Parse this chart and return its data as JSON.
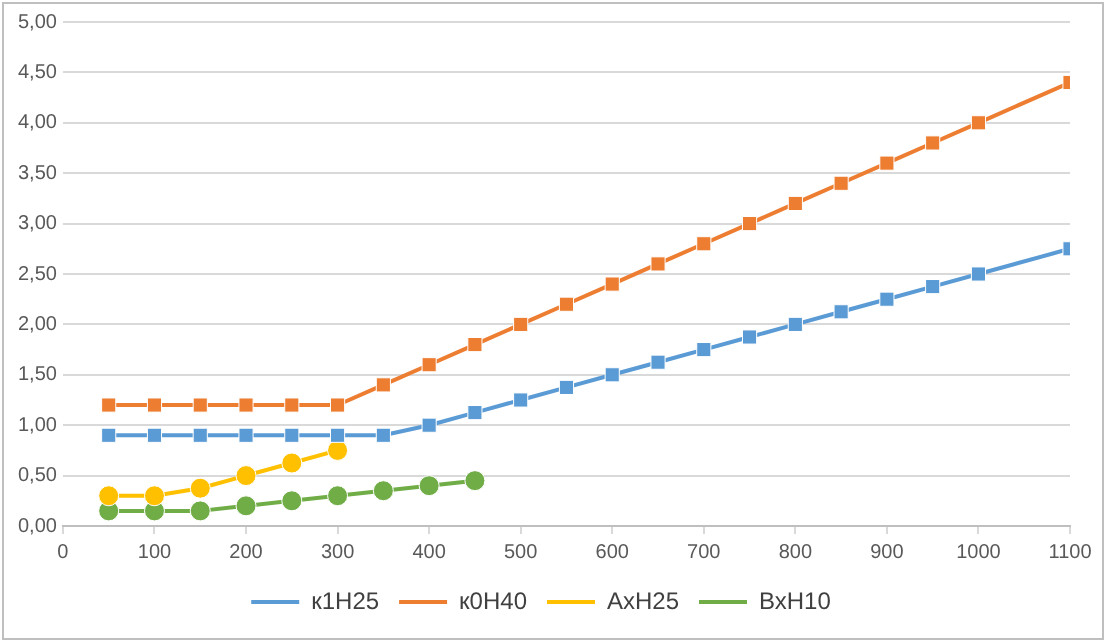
{
  "chart_data": {
    "type": "line",
    "series": [
      {
        "name": "к1Н25",
        "color": "#5b9bd5",
        "marker": "square",
        "x": [
          50,
          100,
          150,
          200,
          250,
          300,
          350,
          400,
          450,
          500,
          550,
          600,
          650,
          700,
          750,
          800,
          850,
          900,
          950,
          1000,
          1100
        ],
        "values": [
          0.9,
          0.9,
          0.9,
          0.9,
          0.9,
          0.9,
          0.9,
          1.0,
          1.125,
          1.25,
          1.375,
          1.5,
          1.625,
          1.75,
          1.875,
          2.0,
          2.125,
          2.25,
          2.375,
          2.5,
          2.75
        ]
      },
      {
        "name": "к0Н40",
        "color": "#ed7d31",
        "marker": "square",
        "x": [
          50,
          100,
          150,
          200,
          250,
          300,
          350,
          400,
          450,
          500,
          550,
          600,
          650,
          700,
          750,
          800,
          850,
          900,
          950,
          1000,
          1100
        ],
        "values": [
          1.2,
          1.2,
          1.2,
          1.2,
          1.2,
          1.2,
          1.4,
          1.6,
          1.8,
          2.0,
          2.2,
          2.4,
          2.6,
          2.8,
          3.0,
          3.2,
          3.4,
          3.6,
          3.8,
          4.0,
          4.4
        ]
      },
      {
        "name": "АхН25",
        "color": "#ffc000",
        "marker": "circle",
        "x": [
          50,
          100,
          150,
          200,
          250,
          300
        ],
        "values": [
          0.3,
          0.3,
          0.375,
          0.5,
          0.625,
          0.75
        ]
      },
      {
        "name": "ВхН10",
        "color": "#70ad47",
        "marker": "circle",
        "x": [
          50,
          100,
          150,
          200,
          250,
          300,
          350,
          400,
          450
        ],
        "values": [
          0.15,
          0.15,
          0.15,
          0.2,
          0.25,
          0.3,
          0.35,
          0.4,
          0.45
        ]
      }
    ],
    "xlim": [
      0,
      1100
    ],
    "xticks": [
      0,
      100,
      200,
      300,
      400,
      500,
      600,
      700,
      800,
      900,
      1000,
      1100
    ],
    "ylim": [
      0,
      5
    ],
    "yticks": [
      {
        "value": 0,
        "label": "0,00"
      },
      {
        "value": 0.5,
        "label": "0,50"
      },
      {
        "value": 1,
        "label": "1,00"
      },
      {
        "value": 1.5,
        "label": "1,50"
      },
      {
        "value": 2,
        "label": "2,00"
      },
      {
        "value": 2.5,
        "label": "2,50"
      },
      {
        "value": 3,
        "label": "3,00"
      },
      {
        "value": 3.5,
        "label": "3,50"
      },
      {
        "value": 4,
        "label": "4,00"
      },
      {
        "value": 4.5,
        "label": "4,50"
      },
      {
        "value": 5,
        "label": "5,00"
      }
    ],
    "grid": "y",
    "legend": "bottom"
  }
}
